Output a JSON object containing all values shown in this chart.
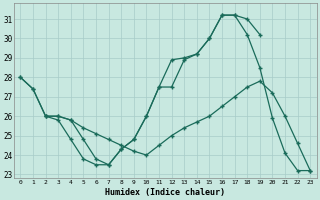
{
  "xlabel": "Humidex (Indice chaleur)",
  "background_color": "#c8e8e0",
  "grid_color": "#a8ccc8",
  "line_color": "#1a6b5a",
  "xlim": [
    -0.5,
    23.5
  ],
  "ylim": [
    22.8,
    31.8
  ],
  "xticks": [
    0,
    1,
    2,
    3,
    4,
    5,
    6,
    7,
    8,
    9,
    10,
    11,
    12,
    13,
    14,
    15,
    16,
    17,
    18,
    19,
    20,
    21,
    22,
    23
  ],
  "yticks": [
    23,
    24,
    25,
    26,
    27,
    28,
    29,
    30,
    31
  ],
  "series1_x": [
    0,
    1,
    2,
    3,
    4,
    5,
    6,
    7,
    8,
    9,
    10,
    11,
    12,
    13,
    14,
    15,
    16,
    17,
    18,
    19,
    20,
    21,
    22,
    23
  ],
  "series1_y": [
    28,
    27.4,
    26,
    26,
    25.8,
    25.4,
    25.1,
    24.8,
    24.5,
    24.2,
    24.0,
    24.5,
    25.0,
    25.4,
    25.7,
    26.0,
    26.5,
    27.0,
    27.5,
    27.8,
    27.2,
    26.0,
    24.6,
    23.2
  ],
  "series2_x": [
    0,
    1,
    2,
    3,
    4,
    5,
    6,
    7,
    8,
    9,
    10,
    11,
    12,
    13,
    14,
    15,
    16,
    17,
    18,
    19
  ],
  "series2_y": [
    28,
    27.4,
    26,
    25.8,
    24.8,
    23.8,
    23.5,
    23.5,
    24.3,
    24.8,
    26.0,
    27.5,
    28.9,
    29.0,
    29.2,
    30.0,
    31.2,
    31.2,
    31.0,
    30.2
  ],
  "series3_x": [
    2,
    3,
    4,
    5,
    6,
    7,
    8,
    9,
    10,
    11,
    12,
    13,
    14,
    15,
    16,
    17,
    18,
    19,
    20,
    21,
    22,
    23
  ],
  "series3_y": [
    26,
    26,
    25.8,
    24.8,
    23.8,
    23.5,
    24.3,
    24.8,
    26.0,
    27.5,
    27.5,
    28.9,
    29.2,
    30.0,
    31.2,
    31.2,
    30.2,
    28.5,
    25.9,
    24.1,
    23.2,
    23.2
  ]
}
